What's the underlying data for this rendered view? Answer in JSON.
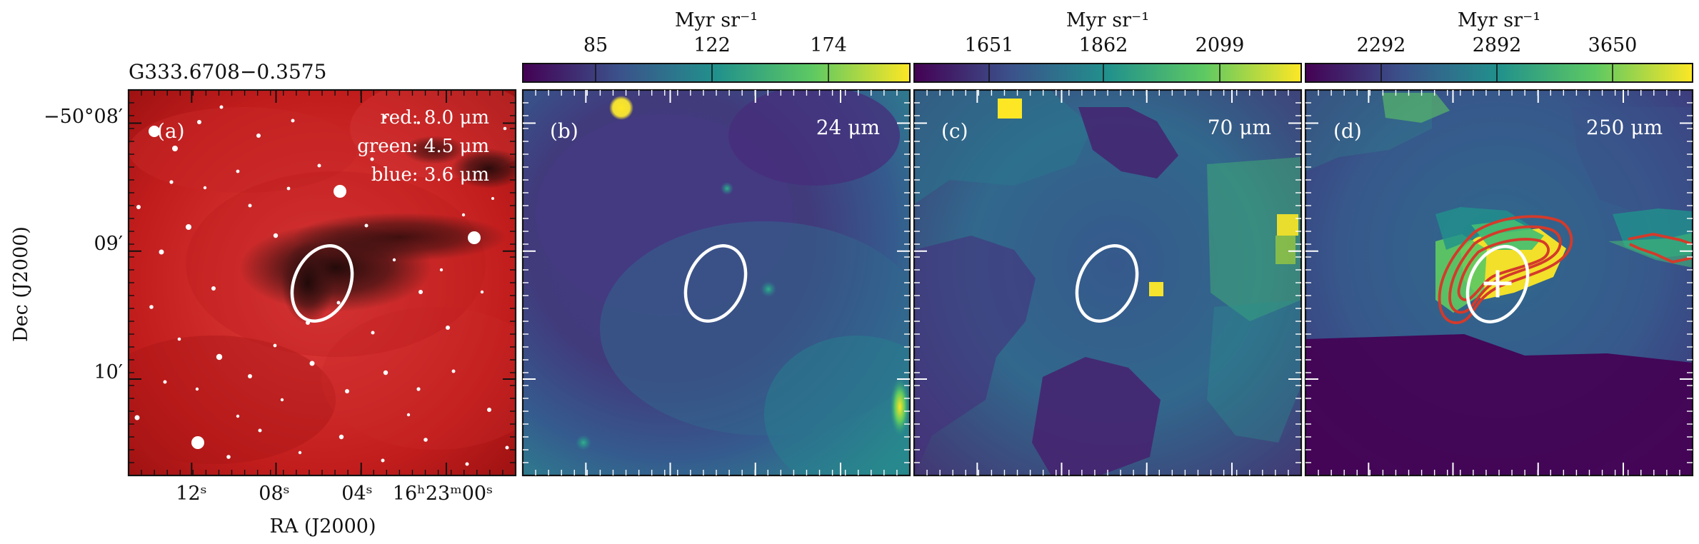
{
  "figure": {
    "source_name": "G333.6708−0.3575",
    "axes": {
      "x_label": "RA (J2000)",
      "y_label": "Dec (J2000)",
      "x_ticks": [
        "12ˢ",
        "08ˢ",
        "04ˢ",
        "16ʰ23ᵐ00ˢ"
      ],
      "y_ticks": [
        "−50°08′",
        "09′",
        "10′"
      ]
    },
    "panels": [
      {
        "id": "a",
        "letter": "(a)",
        "legend": [
          "red: 8.0 μm",
          "green: 4.5 μm",
          "blue: 3.6 μm"
        ],
        "colors": {
          "base": "#b51515",
          "mid": "#d73131",
          "dark": "#2a0a0a",
          "star": "#ffffff"
        }
      },
      {
        "id": "b",
        "letter": "(b)",
        "wavelength": "24 μm",
        "colorbar": {
          "unit": "Myr sr⁻¹",
          "tick_labels": [
            "85",
            "122",
            "174"
          ]
        }
      },
      {
        "id": "c",
        "letter": "(c)",
        "wavelength": "70 μm",
        "colorbar": {
          "unit": "Myr sr⁻¹",
          "tick_labels": [
            "1651",
            "1862",
            "2099"
          ]
        }
      },
      {
        "id": "d",
        "letter": "(d)",
        "wavelength": "250 μm",
        "colorbar": {
          "unit": "Myr sr⁻¹",
          "tick_labels": [
            "2292",
            "2892",
            "3650"
          ]
        }
      }
    ],
    "colors": {
      "viridis_dark": "#440154",
      "viridis_mid1": "#3b528b",
      "viridis_mid2": "#21918c",
      "viridis_mid3": "#5ec962",
      "viridis_light": "#fde725",
      "contour": "#d43a2a",
      "ellipse": "#ffffff"
    },
    "icons": [
      "cross-marker-icon"
    ]
  }
}
